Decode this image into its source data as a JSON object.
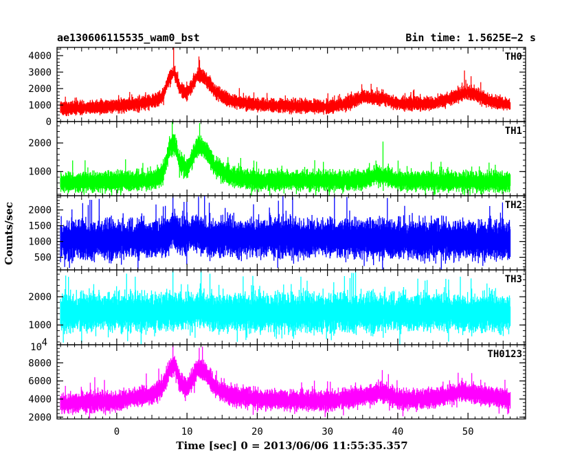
{
  "header": {
    "left": "ae130606115535_wam0_bst",
    "right": "Bin time: 1.5625E−2 s"
  },
  "chart_data": {
    "type": "line",
    "xlabel": "Time [sec] 0 = 2013/06/06 11:55:35.357",
    "ylabel": "Counts/sec",
    "xlim": [
      -8.5,
      58.2
    ],
    "x_ticks": [
      0,
      10,
      20,
      30,
      40,
      50
    ],
    "x_ticks_minor": [
      -5,
      5,
      15,
      25,
      35,
      45,
      55
    ],
    "x_range_data": [
      -8,
      56
    ],
    "panels": [
      {
        "name": "TH0",
        "color": "#ff0000",
        "ylim": [
          0,
          4500
        ],
        "y_ticks": [
          0,
          1000,
          2000,
          3000,
          4000
        ],
        "y_ticklabels": [
          "0",
          "1000",
          "2000",
          "3000",
          "4000"
        ],
        "base": 1000,
        "noise": 450,
        "profile": [
          [
            -8,
            800
          ],
          [
            0,
            950
          ],
          [
            5,
            1200
          ],
          [
            6.5,
            1500
          ],
          [
            7.5,
            2700
          ],
          [
            8.2,
            3000
          ],
          [
            9,
            2000
          ],
          [
            10,
            1700
          ],
          [
            11.5,
            2800
          ],
          [
            12.5,
            2700
          ],
          [
            14,
            1800
          ],
          [
            16,
            1300
          ],
          [
            20,
            1000
          ],
          [
            30,
            900
          ],
          [
            33,
            1100
          ],
          [
            35,
            1500
          ],
          [
            38,
            1400
          ],
          [
            40,
            1100
          ],
          [
            45,
            1100
          ],
          [
            48,
            1500
          ],
          [
            50,
            1800
          ],
          [
            53,
            1300
          ],
          [
            56,
            1000
          ]
        ],
        "spikes": [
          [
            8.1,
            4500
          ],
          [
            49.5,
            3100
          ],
          [
            11.7,
            3950
          ]
        ]
      },
      {
        "name": "TH1",
        "color": "#00ff00",
        "ylim": [
          150,
          2750
        ],
        "y_ticks": [
          1000,
          2000
        ],
        "y_ticklabels": [
          "1000",
          "2000"
        ],
        "base": 650,
        "noise": 380,
        "profile": [
          [
            -8,
            600
          ],
          [
            5,
            700
          ],
          [
            6.5,
            900
          ],
          [
            7.5,
            1800
          ],
          [
            8.2,
            2000
          ],
          [
            9,
            1300
          ],
          [
            10,
            1100
          ],
          [
            11.5,
            1900
          ],
          [
            12.5,
            1800
          ],
          [
            14,
            1200
          ],
          [
            16,
            850
          ],
          [
            20,
            680
          ],
          [
            35,
            700
          ],
          [
            37,
            900
          ],
          [
            38.5,
            800
          ],
          [
            40,
            680
          ],
          [
            56,
            640
          ]
        ],
        "spikes": [
          [
            7.9,
            2750
          ],
          [
            11.8,
            2700
          ],
          [
            37.9,
            2050
          ]
        ]
      },
      {
        "name": "TH2",
        "color": "#0000ff",
        "ylim": [
          100,
          2450
        ],
        "y_ticks": [
          500,
          1000,
          1500,
          2000
        ],
        "y_ticklabels": [
          "500",
          "1000",
          "1500",
          "2000"
        ],
        "base": 1050,
        "noise": 650,
        "profile": [
          [
            -8,
            1050
          ],
          [
            7,
            1100
          ],
          [
            8,
            1350
          ],
          [
            9,
            1150
          ],
          [
            11.5,
            1300
          ],
          [
            13,
            1150
          ],
          [
            56,
            1050
          ]
        ],
        "spikes": [
          [
            8,
            2450
          ],
          [
            12.5,
            2450
          ],
          [
            -2.5,
            2350
          ]
        ]
      },
      {
        "name": "TH3",
        "color": "#00ffff",
        "ylim": [
          300,
          2950
        ],
        "y_ticks": [
          1000,
          2000
        ],
        "y_ticklabels": [
          "1000",
          "2000"
        ],
        "base": 1450,
        "noise": 720,
        "profile": [
          [
            -8,
            1450
          ],
          [
            8,
            1500
          ],
          [
            10,
            1500
          ],
          [
            12,
            1550
          ],
          [
            14,
            1450
          ],
          [
            56,
            1450
          ]
        ],
        "spikes": [
          [
            8,
            2950
          ],
          [
            12,
            2950
          ],
          [
            34,
            2950
          ]
        ]
      },
      {
        "name": "TH0123",
        "color": "#ff00ff",
        "ylim": [
          1800,
          10000
        ],
        "y_ticks": [
          2000,
          4000,
          6000,
          8000
        ],
        "y_ticklabels": [
          "2000",
          "4000",
          "6000",
          "8000"
        ],
        "top_label": "10",
        "top_label_exp": "4",
        "base": 3900,
        "noise": 1200,
        "profile": [
          [
            -8,
            3500
          ],
          [
            0,
            3800
          ],
          [
            5,
            4500
          ],
          [
            6.5,
            5200
          ],
          [
            7.5,
            7300
          ],
          [
            8.3,
            7800
          ],
          [
            9,
            5800
          ],
          [
            10,
            5200
          ],
          [
            11.5,
            7300
          ],
          [
            12.5,
            7200
          ],
          [
            14,
            5300
          ],
          [
            16,
            4500
          ],
          [
            20,
            4000
          ],
          [
            30,
            3800
          ],
          [
            35,
            4300
          ],
          [
            38,
            4800
          ],
          [
            40,
            4000
          ],
          [
            45,
            4100
          ],
          [
            49,
            4800
          ],
          [
            52,
            4500
          ],
          [
            56,
            3900
          ]
        ],
        "spikes": [
          [
            8.0,
            10000
          ],
          [
            12.2,
            9800
          ],
          [
            37.8,
            7200
          ],
          [
            48.6,
            6900
          ]
        ]
      }
    ]
  }
}
